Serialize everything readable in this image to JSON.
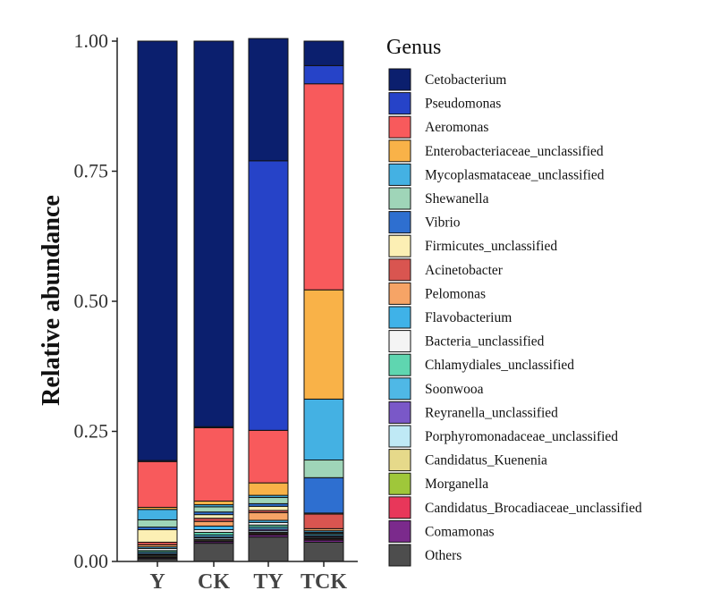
{
  "chart_data": {
    "type": "bar",
    "stacked": true,
    "ylabel": "Relative abundance",
    "xlabel": "",
    "ylim": [
      0,
      1
    ],
    "yticks": [
      "0.00",
      "0.25",
      "0.50",
      "0.75",
      "1.00"
    ],
    "categories": [
      "Y",
      "CK",
      "TY",
      "TCK"
    ],
    "legend": {
      "title": "Genus",
      "position": "right"
    },
    "series": [
      {
        "name": "Others",
        "color": "#4d4d4d",
        "values": [
          0.005,
          0.035,
          0.047,
          0.037
        ]
      },
      {
        "name": "Comamonas",
        "color": "#7b2a8c",
        "values": [
          0.002,
          0.003,
          0.004,
          0.004
        ]
      },
      {
        "name": "Candidatus_Brocadiaceae_unclassified",
        "color": "#e8375a",
        "values": [
          0.001,
          0.001,
          0.002,
          0.002
        ]
      },
      {
        "name": "Morganella",
        "color": "#9fc73a",
        "values": [
          0.001,
          0.001,
          0.001,
          0.001
        ]
      },
      {
        "name": "Candidatus_Kuenenia",
        "color": "#e6d98a",
        "values": [
          0.002,
          0.002,
          0.002,
          0.001
        ]
      },
      {
        "name": "Porphyromonadaceae_unclassified",
        "color": "#bfe9f5",
        "values": [
          0.002,
          0.003,
          0.003,
          0.002
        ]
      },
      {
        "name": "Reyranella_unclassified",
        "color": "#7a58c8",
        "values": [
          0.002,
          0.002,
          0.003,
          0.002
        ]
      },
      {
        "name": "Soonwooa",
        "color": "#4fb8e6",
        "values": [
          0.003,
          0.004,
          0.004,
          0.003
        ]
      },
      {
        "name": "Chlamydiales_unclassified",
        "color": "#5fd6b0",
        "values": [
          0.003,
          0.005,
          0.004,
          0.002
        ]
      },
      {
        "name": "Bacteria_unclassified",
        "color": "#f4f4f4",
        "values": [
          0.004,
          0.005,
          0.005,
          0.002
        ]
      },
      {
        "name": "Flavobacterium",
        "color": "#3fb2e8",
        "values": [
          0.003,
          0.007,
          0.004,
          0.003
        ]
      },
      {
        "name": "Pelomonas",
        "color": "#f6a466",
        "values": [
          0.004,
          0.009,
          0.015,
          0.004
        ]
      },
      {
        "name": "Acinetobacter",
        "color": "#d95550",
        "values": [
          0.005,
          0.006,
          0.004,
          0.028
        ]
      },
      {
        "name": "Firmicutes_unclassified",
        "color": "#fcefb4",
        "values": [
          0.024,
          0.007,
          0.008,
          0.002
        ]
      },
      {
        "name": "Vibrio",
        "color": "#2e6fd0",
        "values": [
          0.005,
          0.005,
          0.005,
          0.068
        ]
      },
      {
        "name": "Shewanella",
        "color": "#9fd5b8",
        "values": [
          0.014,
          0.01,
          0.012,
          0.034
        ]
      },
      {
        "name": "Mycoplasmataceae_unclassified",
        "color": "#44b1e3",
        "values": [
          0.02,
          0.004,
          0.004,
          0.117
        ]
      },
      {
        "name": "Enterobacteriaceae_unclassified",
        "color": "#f9b248",
        "values": [
          0.004,
          0.007,
          0.024,
          0.21
        ]
      },
      {
        "name": "Aeromonas",
        "color": "#f85a5c",
        "values": [
          0.088,
          0.141,
          0.101,
          0.396
        ]
      },
      {
        "name": "Pseudomonas",
        "color": "#2643c8",
        "values": [
          0.002,
          0.002,
          0.518,
          0.035
        ]
      },
      {
        "name": "Cetobacterium",
        "color": "#0b1f6e",
        "values": [
          0.806,
          0.741,
          0.235,
          0.047
        ]
      }
    ]
  },
  "legend_items": [
    {
      "label": "Cetobacterium",
      "color": "#0b1f6e"
    },
    {
      "label": "Pseudomonas",
      "color": "#2643c8"
    },
    {
      "label": "Aeromonas",
      "color": "#f85a5c"
    },
    {
      "label": "Enterobacteriaceae_unclassified",
      "color": "#f9b248"
    },
    {
      "label": "Mycoplasmataceae_unclassified",
      "color": "#44b1e3"
    },
    {
      "label": "Shewanella",
      "color": "#9fd5b8"
    },
    {
      "label": "Vibrio",
      "color": "#2e6fd0"
    },
    {
      "label": "Firmicutes_unclassified",
      "color": "#fcefb4"
    },
    {
      "label": "Acinetobacter",
      "color": "#d95550"
    },
    {
      "label": "Pelomonas",
      "color": "#f6a466"
    },
    {
      "label": "Flavobacterium",
      "color": "#3fb2e8"
    },
    {
      "label": "Bacteria_unclassified",
      "color": "#f4f4f4"
    },
    {
      "label": "Chlamydiales_unclassified",
      "color": "#5fd6b0"
    },
    {
      "label": "Soonwooa",
      "color": "#4fb8e6"
    },
    {
      "label": "Reyranella_unclassified",
      "color": "#7a58c8"
    },
    {
      "label": "Porphyromonadaceae_unclassified",
      "color": "#bfe9f5"
    },
    {
      "label": "Candidatus_Kuenenia",
      "color": "#e6d98a"
    },
    {
      "label": "Morganella",
      "color": "#9fc73a"
    },
    {
      "label": "Candidatus_Brocadiaceae_unclassified",
      "color": "#e8375a"
    },
    {
      "label": "Comamonas",
      "color": "#7b2a8c"
    },
    {
      "label": "Others",
      "color": "#4d4d4d"
    }
  ]
}
